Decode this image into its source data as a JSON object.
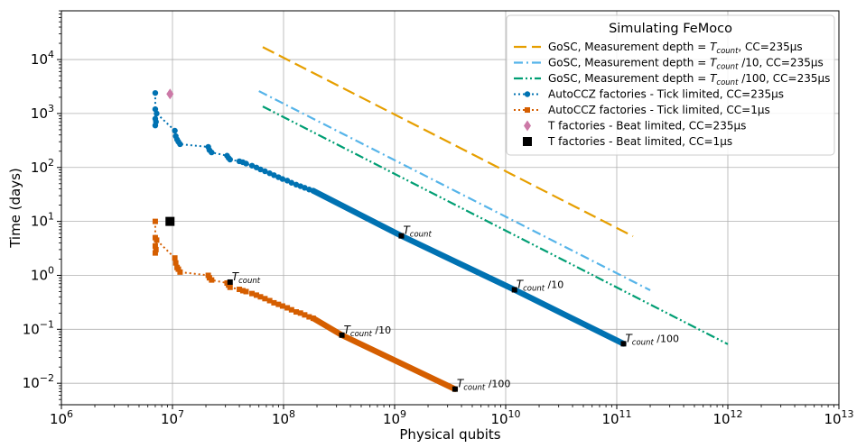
{
  "chart_data": {
    "type": "line",
    "xscale": "log",
    "yscale": "log",
    "xlabel": "Physical qubits",
    "ylabel": "Time (days)",
    "xlim": [
      1000000,
      10000000000000
    ],
    "ylim": [
      0.004,
      80000
    ],
    "x_ticks": [
      {
        "value": 1000000.0,
        "base": "10",
        "exp": "6"
      },
      {
        "value": 10000000.0,
        "base": "10",
        "exp": "7"
      },
      {
        "value": 100000000.0,
        "base": "10",
        "exp": "8"
      },
      {
        "value": 1000000000.0,
        "base": "10",
        "exp": "9"
      },
      {
        "value": 10000000000.0,
        "base": "10",
        "exp": "10"
      },
      {
        "value": 100000000000.0,
        "base": "10",
        "exp": "11"
      },
      {
        "value": 1000000000000.0,
        "base": "10",
        "exp": "12"
      },
      {
        "value": 10000000000000.0,
        "base": "10",
        "exp": "13"
      }
    ],
    "y_ticks": [
      {
        "value": 0.01,
        "base": "10",
        "exp": "−2"
      },
      {
        "value": 0.1,
        "base": "10",
        "exp": "−1"
      },
      {
        "value": 1,
        "base": "10",
        "exp": "0"
      },
      {
        "value": 10,
        "base": "10",
        "exp": "1"
      },
      {
        "value": 100,
        "base": "10",
        "exp": "2"
      },
      {
        "value": 1000,
        "base": "10",
        "exp": "3"
      },
      {
        "value": 10000,
        "base": "10",
        "exp": "4"
      }
    ],
    "grid": true,
    "legend": {
      "title": "Simulating FeMoco",
      "position": "top-right",
      "entries": [
        {
          "pre": "GoSC, Measurement depth = ",
          "sym": "T",
          "sub": "count",
          "post": ", CC=235µs"
        },
        {
          "pre": "GoSC, Measurement depth = ",
          "sym": "T",
          "sub": "count",
          "post": " /10, CC=235µs"
        },
        {
          "pre": "GoSC,  Measurement depth = ",
          "sym": "T",
          "sub": "count",
          "post": " /100, CC=235µs"
        },
        {
          "pre": "AutoCCZ factories - Tick limited, CC=235µs",
          "sym": "",
          "sub": "",
          "post": ""
        },
        {
          "pre": "AutoCCZ factories - Tick limited, CC=1µs",
          "sym": "",
          "sub": "",
          "post": ""
        },
        {
          "pre": "T factories - Beat limited, CC=235µs",
          "sym": "",
          "sub": "",
          "post": ""
        },
        {
          "pre": "T factories - Beat limited, CC=1µs",
          "sym": "",
          "sub": "",
          "post": ""
        }
      ]
    },
    "series": [
      {
        "name": "GoSC Tcount",
        "color": "#E69F00",
        "style": "dashed",
        "x": [
          65000000,
          140000000000
        ],
        "y": [
          17000,
          5.3
        ]
      },
      {
        "name": "GoSC Tcount/10",
        "color": "#56B4E9",
        "style": "dashdot",
        "x": [
          60000000,
          200000000000
        ],
        "y": [
          2600,
          0.53
        ]
      },
      {
        "name": "GoSC Tcount/100",
        "color": "#009E73",
        "style": "dashdotdot",
        "x": [
          65000000,
          1000000000000
        ],
        "y": [
          1350,
          0.053
        ]
      },
      {
        "name": "AutoCCZ 235us",
        "color": "#0072B2",
        "marker": "circle",
        "x": [
          7000000,
          7000000,
          7000000,
          7000000,
          7100000,
          7200000,
          10500000,
          10700000,
          11000000,
          11300000,
          11700000,
          21000000,
          21500000,
          22500000,
          31000000,
          32000000,
          33000000,
          40000000,
          43000000,
          46000000,
          52000000,
          57000000,
          62000000,
          68000000,
          75000000,
          82000000,
          90000000,
          98000000,
          108000000,
          118000000,
          130000000,
          142000000,
          155000000,
          170000000,
          185000000,
          1150000000,
          12000000000,
          115000000000
        ],
        "y": [
          2400,
          1200,
          800,
          600,
          700,
          1000,
          480,
          380,
          330,
          300,
          270,
          240,
          210,
          190,
          165,
          150,
          140,
          130,
          125,
          118,
          108,
          100,
          92,
          85,
          78,
          72,
          66,
          61,
          57,
          52,
          48,
          45,
          42,
          39,
          37,
          5.4,
          0.54,
          0.054
        ]
      },
      {
        "name": "AutoCCZ 1us",
        "color": "#D55E00",
        "marker": "square",
        "x": [
          7000000,
          7000000,
          7000000,
          7000000,
          7100000,
          7200000,
          10500000,
          10700000,
          11000000,
          11300000,
          11700000,
          21000000,
          21500000,
          22500000,
          31000000,
          32000000,
          33000000,
          40000000,
          43000000,
          46000000,
          52000000,
          57000000,
          62000000,
          68000000,
          75000000,
          82000000,
          90000000,
          98000000,
          108000000,
          118000000,
          130000000,
          142000000,
          155000000,
          170000000,
          185000000,
          335000000,
          3500000000
        ],
        "y": [
          10,
          5,
          3.5,
          2.6,
          3,
          4.5,
          2.1,
          1.7,
          1.4,
          1.3,
          1.15,
          1.0,
          0.9,
          0.82,
          0.72,
          0.66,
          0.6,
          0.55,
          0.52,
          0.5,
          0.46,
          0.43,
          0.4,
          0.37,
          0.34,
          0.31,
          0.29,
          0.27,
          0.25,
          0.23,
          0.21,
          0.2,
          0.185,
          0.17,
          0.16,
          0.078,
          0.0078
        ]
      },
      {
        "name": "T factories 235us",
        "color": "#CC79A7",
        "marker": "diamond",
        "x": [
          9500000
        ],
        "y": [
          2300
        ]
      },
      {
        "name": "T factories 1us",
        "color": "#000000",
        "marker": "bigsquare",
        "x": [
          9500000
        ],
        "y": [
          10
        ]
      }
    ],
    "annotations": [
      {
        "x": 1150000000,
        "y": 5.4,
        "sym": "T",
        "sub": "count",
        "post": ""
      },
      {
        "x": 12000000000,
        "y": 0.54,
        "sym": "T",
        "sub": "count",
        "post": " /10"
      },
      {
        "x": 115000000000,
        "y": 0.054,
        "sym": "T",
        "sub": "count",
        "post": " /100"
      },
      {
        "x": 33000000,
        "y": 0.75,
        "sym": "T",
        "sub": "count",
        "post": ""
      },
      {
        "x": 335000000,
        "y": 0.078,
        "sym": "T",
        "sub": "count",
        "post": " /10"
      },
      {
        "x": 3500000000,
        "y": 0.0078,
        "sym": "T",
        "sub": "count",
        "post": " /100"
      }
    ]
  }
}
